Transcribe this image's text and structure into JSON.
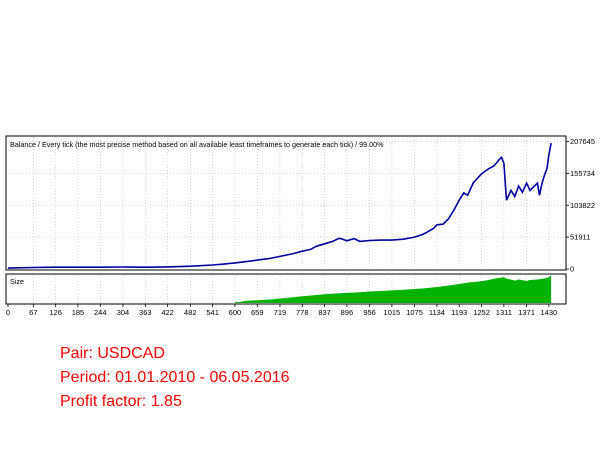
{
  "chart_data": {
    "type": "line",
    "title": "Balance / Every tick (the most precise method based on all available least timeframes to generate each tick) / 99.00%",
    "balance_series": {
      "label": "Balance",
      "x": [
        0,
        67,
        126,
        185,
        244,
        304,
        363,
        422,
        482,
        541,
        570,
        600,
        630,
        659,
        690,
        719,
        750,
        778,
        800,
        815,
        837,
        860,
        875,
        882,
        896,
        915,
        930,
        956,
        985,
        1015,
        1045,
        1075,
        1095,
        1105,
        1125,
        1134,
        1150,
        1165,
        1180,
        1193,
        1205,
        1215,
        1230,
        1252,
        1270,
        1285,
        1300,
        1305,
        1311,
        1318,
        1330,
        1340,
        1350,
        1360,
        1371,
        1380,
        1390,
        1400,
        1405,
        1412,
        1418,
        1425,
        1430,
        1436
      ],
      "y": [
        1500,
        2500,
        3000,
        3000,
        3000,
        3200,
        3000,
        3500,
        4500,
        6500,
        8000,
        10000,
        12000,
        14500,
        17000,
        20500,
        24500,
        29000,
        32000,
        37000,
        41000,
        45500,
        50000,
        49000,
        46000,
        49500,
        45000,
        46500,
        47000,
        47000,
        48500,
        52000,
        56000,
        59000,
        66000,
        72000,
        73000,
        82000,
        97000,
        112000,
        124000,
        120000,
        140000,
        155000,
        163000,
        168000,
        179000,
        182000,
        172000,
        112000,
        128000,
        118000,
        135000,
        125000,
        140000,
        128000,
        134000,
        140000,
        120000,
        140000,
        152000,
        164000,
        186000,
        205000
      ]
    },
    "size_series": {
      "label": "Size",
      "x": [
        600,
        630,
        659,
        690,
        719,
        750,
        778,
        810,
        837,
        866,
        896,
        926,
        956,
        986,
        1015,
        1045,
        1075,
        1104,
        1134,
        1164,
        1193,
        1223,
        1252,
        1270,
        1290,
        1311,
        1320,
        1341,
        1350,
        1371,
        1380,
        1401,
        1420,
        1430,
        1436
      ],
      "y": [
        0,
        0.08,
        0.1,
        0.12,
        0.16,
        0.2,
        0.24,
        0.28,
        0.31,
        0.34,
        0.36,
        0.38,
        0.41,
        0.43,
        0.45,
        0.47,
        0.5,
        0.53,
        0.57,
        0.62,
        0.68,
        0.74,
        0.78,
        0.82,
        0.88,
        0.92,
        0.86,
        0.8,
        0.84,
        0.79,
        0.82,
        0.84,
        0.88,
        0.92,
        1.0
      ]
    },
    "xlim": [
      0,
      1470
    ],
    "ylim": [
      0,
      215000
    ],
    "size_ylim": [
      0,
      1
    ],
    "x_ticks": [
      "0",
      "67",
      "126",
      "185",
      "244",
      "304",
      "363",
      "422",
      "482",
      "541",
      "600",
      "659",
      "719",
      "778",
      "837",
      "896",
      "956",
      "1015",
      "1075",
      "1134",
      "1193",
      "1252",
      "1311",
      "1371",
      "1430"
    ],
    "y_ticks": [
      "207645",
      "155734",
      "103822",
      "51911",
      "0"
    ],
    "grid": true,
    "colors": {
      "balance": "#0000a0",
      "size": "#00b300",
      "frame": "#000000",
      "grid": "#c0c0c0"
    }
  },
  "report": {
    "pair": "Pair: USDCAD",
    "period": "Period: 01.01.2010 - 06.05.2016",
    "profit_factor": "Profit factor: 1.85"
  }
}
